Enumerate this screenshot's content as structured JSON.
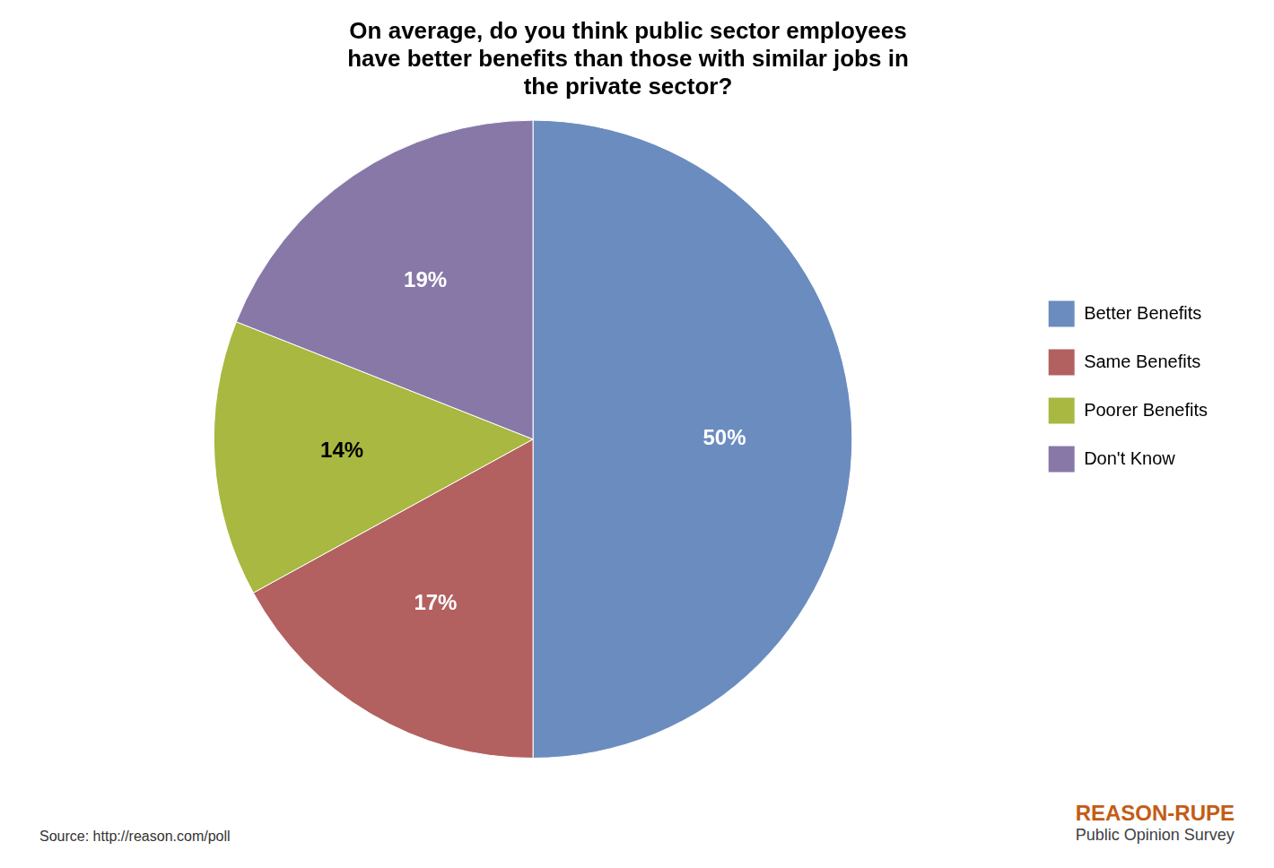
{
  "chart_data": {
    "type": "pie",
    "title": "On average, do you think public sector employees\nhave better benefits than those with similar jobs in\nthe private sector?",
    "categories": [
      "Better Benefits",
      "Same Benefits",
      "Poorer Benefits",
      "Don't Know"
    ],
    "values": [
      50,
      17,
      14,
      19
    ],
    "value_labels": [
      "50%",
      "17%",
      "14%",
      "19%"
    ],
    "data_labels": true,
    "colors": [
      "#6b8cbf",
      "#b36060",
      "#a8b840",
      "#8878a8"
    ],
    "legend": "right",
    "annotations": [
      "Source: http://reason.com/poll",
      "REASON-RUPE",
      "Public Opinion Survey"
    ]
  }
}
